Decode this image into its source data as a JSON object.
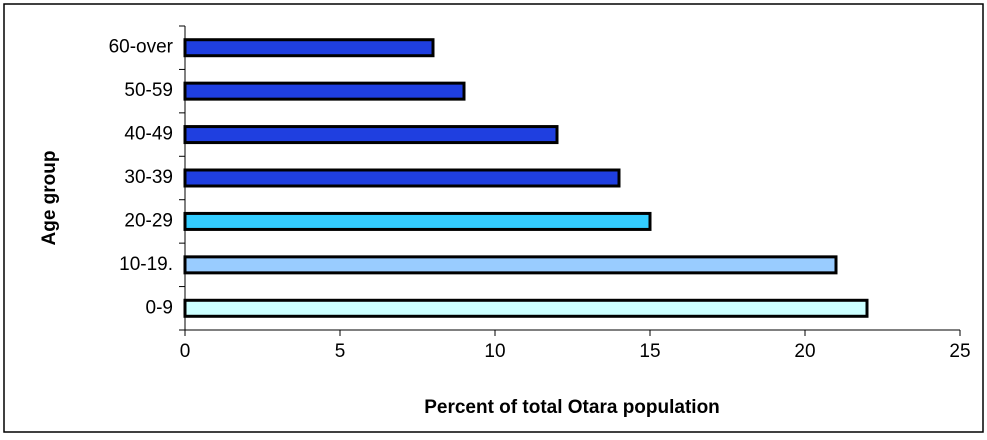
{
  "chart_data": {
    "type": "bar",
    "orientation": "horizontal",
    "x_label": "Percent of total Otara population",
    "y_label": "Age group",
    "categories": [
      "0-9",
      "10-19.",
      "20-29",
      "30-39",
      "40-49",
      "50-59",
      "60-over"
    ],
    "values": [
      22,
      21,
      15,
      14,
      12,
      9,
      8
    ],
    "colors": [
      "#ccffff",
      "#99ccff",
      "#33ccff",
      "#1f3fe0",
      "#1f3fe0",
      "#1f3fe0",
      "#1f3fe0"
    ],
    "xlim": [
      0,
      25
    ],
    "xticks": [
      0,
      5,
      10,
      15,
      20,
      25
    ],
    "grid": false
  }
}
